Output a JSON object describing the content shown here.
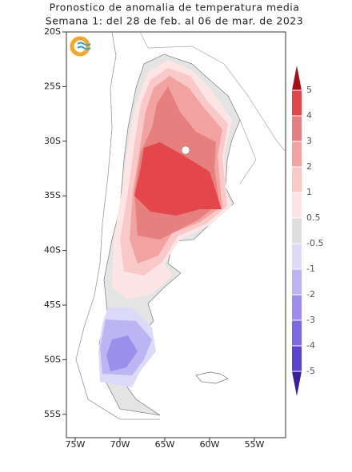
{
  "header": {
    "title": [
      "Pronostico de anomalia de temperatura media",
      "Semana 1: del 28 de feb. al 06 de mar. de 2023"
    ]
  },
  "axes": {
    "lat_ticks": [
      "20S",
      "25S",
      "30S",
      "35S",
      "40S",
      "45S",
      "50S",
      "55S"
    ],
    "lon_ticks": [
      "75W",
      "70W",
      "65W",
      "60W",
      "55W"
    ]
  },
  "colorbar": {
    "levels": [
      5,
      4,
      3,
      2,
      1,
      0.5,
      -0.5,
      -1,
      -2,
      -3,
      -4,
      -5
    ],
    "colors": [
      "#a50f15",
      "#e3474c",
      "#e5807f",
      "#f3a2a2",
      "#f9c8c8",
      "#fde5e5",
      "#dedede",
      "#dcdaf8",
      "#bcb4f3",
      "#9c8fec",
      "#7c69df",
      "#5a44c9",
      "#3a1f9c"
    ]
  }
}
